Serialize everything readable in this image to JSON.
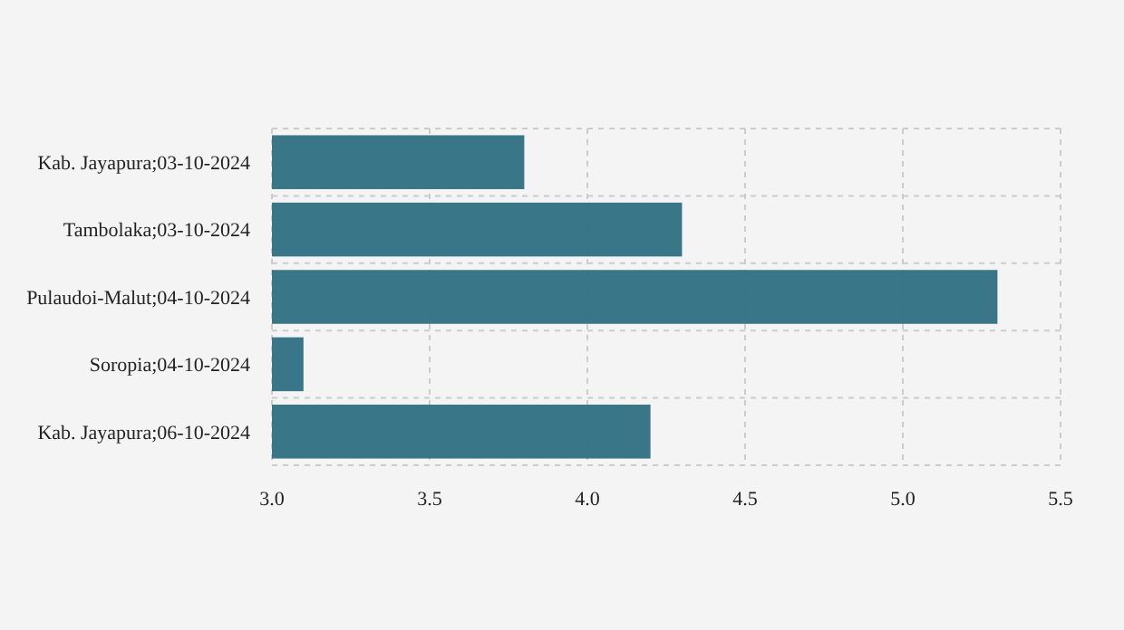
{
  "chart_data": {
    "type": "bar",
    "orientation": "horizontal",
    "categories": [
      "Kab. Jayapura;03-10-2024",
      "Tambolaka;03-10-2024",
      "Pulaudoi-Malut;04-10-2024",
      "Soropia;04-10-2024",
      "Kab. Jayapura;06-10-2024"
    ],
    "values": [
      3.8,
      4.3,
      5.3,
      3.1,
      4.2
    ],
    "color": "#2e6f82",
    "xlim": [
      3.0,
      5.5
    ],
    "xticks": [
      {
        "value": 3,
        "label": "3.0"
      },
      {
        "value": 3.5,
        "label": "3.5"
      },
      {
        "value": 4,
        "label": "4.0"
      },
      {
        "value": 4.5,
        "label": "4.5"
      },
      {
        "value": 5,
        "label": "5.0"
      },
      {
        "value": 5.5,
        "label": "5.5"
      }
    ],
    "grid": true
  }
}
